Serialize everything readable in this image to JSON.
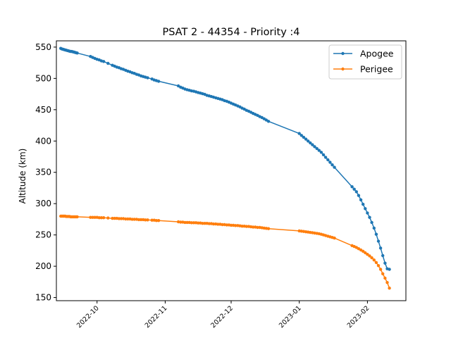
{
  "chart_data": {
    "type": "line",
    "title": "PSAT 2 - 44354 - Priority :4",
    "xlabel": "",
    "ylabel": "Altitude (km)",
    "grid": false,
    "legend_position": "top-right",
    "x_tick_labels": [
      "2022-10",
      "2022-11",
      "2022-12",
      "2023-01",
      "2023-02"
    ],
    "x_tick_days": [
      0,
      31,
      61,
      92,
      123
    ],
    "x_range_days": [
      -18.5,
      140.5
    ],
    "y_ticks": [
      150,
      200,
      250,
      300,
      350,
      400,
      450,
      500,
      550
    ],
    "y_range": [
      145,
      560
    ],
    "series": [
      {
        "name": "Apogee",
        "color": "#1f77b4",
        "x_days": [
          -16.5,
          -16,
          -15.5,
          -15,
          -14.5,
          -14,
          -13.5,
          -13,
          -12.5,
          -12,
          -11.5,
          -11,
          -10.5,
          -10,
          -9.5,
          -9,
          -3,
          -2,
          -1,
          0,
          1,
          2,
          3,
          5,
          7,
          8,
          9,
          10,
          11,
          12,
          13,
          14,
          15,
          16,
          17,
          18,
          19,
          20,
          21,
          22,
          23,
          25,
          26,
          27,
          28,
          37,
          38,
          39,
          40,
          41,
          42,
          43,
          44,
          45,
          46,
          47,
          48,
          49,
          50,
          51,
          52,
          53,
          54,
          55,
          56,
          57,
          58,
          59,
          60,
          61,
          62,
          63,
          64,
          65,
          66,
          67,
          68,
          69,
          70,
          71,
          72,
          73,
          74,
          75,
          76,
          77,
          78,
          92,
          93,
          94,
          95,
          96,
          97,
          98,
          99,
          100,
          101,
          102,
          103,
          104,
          105,
          106,
          107,
          108,
          116,
          117,
          118,
          119,
          120,
          121,
          122,
          123,
          124,
          125,
          126,
          127,
          128,
          129,
          130,
          131,
          132,
          133
        ],
        "values": [
          548,
          547,
          546.5,
          546,
          545.5,
          545,
          544.5,
          544,
          543.5,
          543,
          543,
          542.5,
          542,
          541.5,
          541,
          540.5,
          535,
          533.5,
          532,
          530.5,
          529.5,
          528,
          527,
          524,
          521,
          519.5,
          518,
          517,
          515.5,
          514.5,
          513,
          511.5,
          510.5,
          509,
          508,
          506.5,
          505.5,
          504,
          503,
          502,
          501,
          499,
          497.5,
          496.5,
          495.5,
          488,
          486,
          484.5,
          483,
          482,
          481,
          480,
          479.5,
          478.5,
          477.5,
          476.5,
          475.5,
          474.5,
          473,
          472,
          471,
          470,
          469,
          468,
          467,
          466,
          464.5,
          463.5,
          462,
          460.5,
          459,
          457.5,
          456,
          454.5,
          452.5,
          451,
          449,
          447.5,
          446,
          444,
          442.5,
          441,
          439,
          437.5,
          435.5,
          433.5,
          431.5,
          412,
          409,
          406,
          403,
          400,
          397,
          394,
          391,
          388,
          385,
          382,
          378,
          374,
          370,
          366,
          362,
          358,
          327,
          323,
          319,
          313,
          306,
          299,
          292,
          285,
          278,
          270,
          261,
          251,
          240,
          229,
          217,
          205,
          196,
          195
        ]
      },
      {
        "name": "Perigee",
        "color": "#ff7f0e",
        "x_days": [
          -16.5,
          -16,
          -15.5,
          -15,
          -14.5,
          -14,
          -13.5,
          -13,
          -12.5,
          -12,
          -11.5,
          -11,
          -10.5,
          -10,
          -9.5,
          -9,
          -3,
          -2,
          -1,
          0,
          1,
          2,
          3,
          5,
          7,
          8,
          9,
          10,
          11,
          12,
          13,
          14,
          15,
          16,
          17,
          18,
          19,
          20,
          21,
          22,
          23,
          25,
          26,
          27,
          28,
          37,
          38,
          39,
          40,
          41,
          42,
          43,
          44,
          45,
          46,
          47,
          48,
          49,
          50,
          51,
          52,
          53,
          54,
          55,
          56,
          57,
          58,
          59,
          60,
          61,
          62,
          63,
          64,
          65,
          66,
          67,
          68,
          69,
          70,
          71,
          72,
          73,
          74,
          75,
          76,
          77,
          78,
          92,
          93,
          94,
          95,
          96,
          97,
          98,
          99,
          100,
          101,
          102,
          103,
          104,
          105,
          106,
          107,
          108,
          116,
          117,
          118,
          119,
          120,
          121,
          122,
          123,
          124,
          125,
          126,
          127,
          128,
          129,
          130,
          131,
          132,
          133
        ],
        "values": [
          280,
          280,
          280,
          280,
          280,
          279.5,
          279.5,
          279.5,
          279.5,
          279,
          279,
          279,
          279,
          279,
          279,
          279,
          278,
          278,
          278,
          278,
          277.5,
          277.5,
          277.5,
          277,
          276.5,
          276.5,
          276.5,
          276,
          276,
          276,
          275.5,
          275.5,
          275.5,
          275,
          275,
          275,
          274.5,
          274.5,
          274.5,
          274,
          274,
          273.5,
          273.5,
          273,
          273,
          271,
          270.5,
          270.5,
          270,
          270,
          270,
          269.5,
          269.5,
          269.5,
          269,
          269,
          268.5,
          268.5,
          268.5,
          268,
          268,
          267.5,
          267.5,
          267,
          267,
          266.5,
          266.5,
          266,
          266,
          265.5,
          265.5,
          265,
          265,
          264.5,
          264,
          264,
          263.5,
          263.5,
          263,
          262.5,
          262.5,
          262,
          262,
          261.5,
          261,
          260.5,
          260,
          256.5,
          256,
          255.5,
          255,
          254.5,
          254,
          253.5,
          253,
          252.5,
          252,
          251,
          250,
          249,
          248,
          247,
          246,
          245,
          233,
          231.5,
          230,
          228,
          226,
          224,
          221.5,
          219,
          216.5,
          213.5,
          210,
          206,
          201,
          195,
          188,
          181,
          174,
          165
        ]
      }
    ]
  }
}
